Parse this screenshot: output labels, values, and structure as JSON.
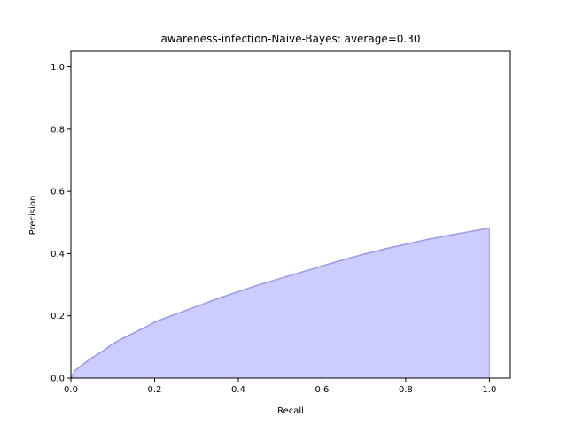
{
  "chart_data": {
    "type": "area",
    "title": "awareness-infection-Naive-Bayes: average=0.30",
    "xlabel": "Recall",
    "ylabel": "Precision",
    "xlim": [
      0.0,
      1.05
    ],
    "ylim": [
      0.0,
      1.05
    ],
    "xticks": [
      "0.0",
      "0.2",
      "0.4",
      "0.6",
      "0.8",
      "1.0"
    ],
    "yticks": [
      "0.0",
      "0.2",
      "0.4",
      "0.6",
      "0.8",
      "1.0"
    ],
    "grid": false,
    "fill_color": "#ccccff",
    "line_color": "#9999ee",
    "series": [
      {
        "x": [
          0.0,
          0.01,
          0.03,
          0.05,
          0.08,
          0.1,
          0.12,
          0.15,
          0.18,
          0.2,
          0.25,
          0.3,
          0.35,
          0.4,
          0.45,
          0.5,
          0.55,
          0.6,
          0.65,
          0.7,
          0.75,
          0.8,
          0.85,
          0.9,
          0.95,
          1.0
        ],
        "y": [
          0.0,
          0.025,
          0.045,
          0.065,
          0.09,
          0.11,
          0.125,
          0.145,
          0.165,
          0.18,
          0.205,
          0.23,
          0.255,
          0.278,
          0.3,
          0.32,
          0.34,
          0.36,
          0.38,
          0.398,
          0.415,
          0.43,
          0.445,
          0.458,
          0.47,
          0.482
        ]
      }
    ]
  }
}
